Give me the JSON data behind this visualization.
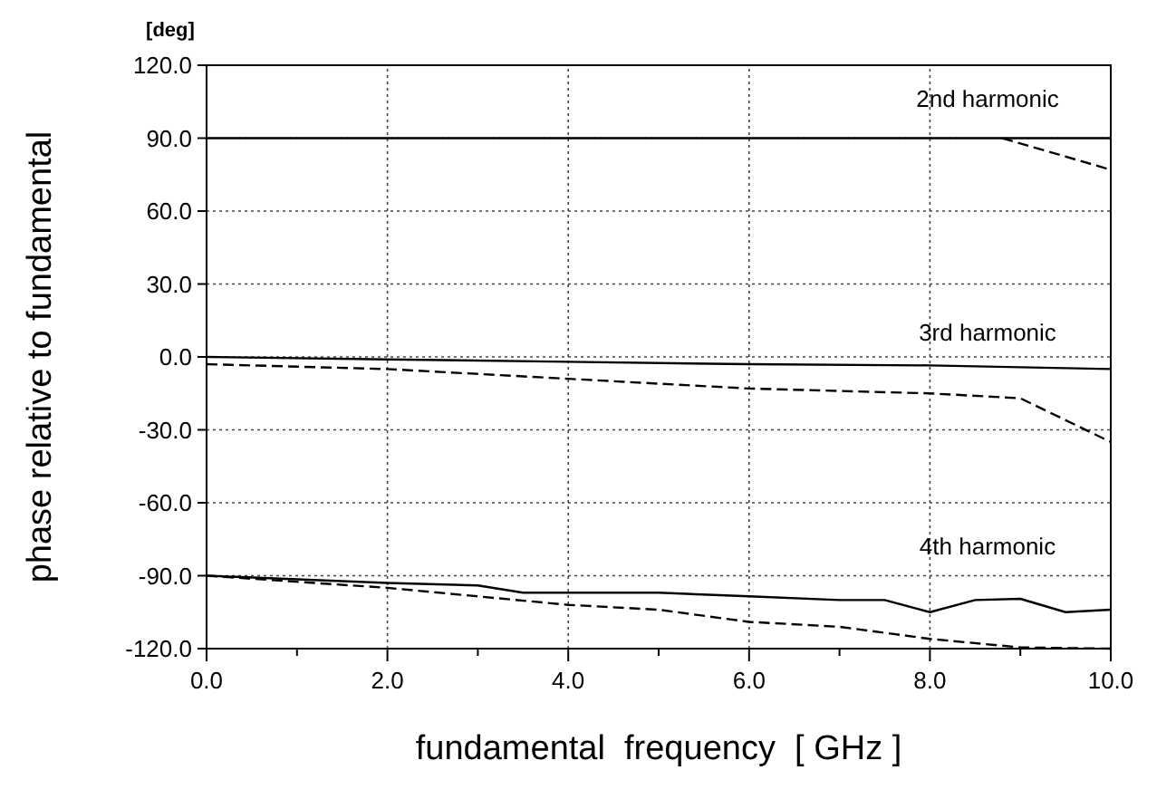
{
  "chart_data": {
    "type": "line",
    "xlabel": "fundamental  frequency  [ GHz ]",
    "ylabel": "phase relative to fundamental",
    "xlim": [
      0,
      10
    ],
    "ylim": [
      -120,
      120
    ],
    "xticks": [
      {
        "value": 0,
        "label": "0.0"
      },
      {
        "value": 1,
        "label": null
      },
      {
        "value": 2,
        "label": "2.0"
      },
      {
        "value": 3,
        "label": null
      },
      {
        "value": 4,
        "label": "4.0"
      },
      {
        "value": 5,
        "label": null
      },
      {
        "value": 6,
        "label": "6.0"
      },
      {
        "value": 7,
        "label": null
      },
      {
        "value": 8,
        "label": "8.0"
      },
      {
        "value": 9,
        "label": null
      },
      {
        "value": 10,
        "label": "10.0"
      }
    ],
    "yticks": [
      {
        "value": -120,
        "label": "-120.0"
      },
      {
        "value": -90,
        "label": "-90.0"
      },
      {
        "value": -60,
        "label": "-60.0"
      },
      {
        "value": -30,
        "label": "-30.0"
      },
      {
        "value": 0,
        "label": "0.0"
      },
      {
        "value": 30,
        "label": "30.0"
      },
      {
        "value": 60,
        "label": "60.0"
      },
      {
        "value": 90,
        "label": "90.0"
      },
      {
        "value": 120,
        "label": "120.0"
      }
    ],
    "grid": true,
    "marker": "none",
    "series": [
      {
        "color": "#000000",
        "line_style": "solid",
        "x": [
          0,
          10
        ],
        "values": [
          90,
          90
        ]
      },
      {
        "color": "#000000",
        "line_style": "dashed",
        "x": [
          8.8,
          10
        ],
        "values": [
          90,
          77
        ]
      },
      {
        "color": "#000000",
        "line_style": "solid",
        "x": [
          0,
          2,
          4,
          6,
          8,
          10
        ],
        "values": [
          0,
          -1,
          -2,
          -3,
          -3.5,
          -5
        ]
      },
      {
        "color": "#000000",
        "line_style": "dashed",
        "x": [
          0,
          2,
          4,
          6,
          8,
          9,
          10
        ],
        "values": [
          -3,
          -5,
          -9,
          -13,
          -15,
          -17,
          -35
        ]
      },
      {
        "color": "#000000",
        "line_style": "solid",
        "x": [
          0,
          1,
          2,
          3,
          3.5,
          4,
          5,
          6,
          7,
          7.5,
          8,
          8.5,
          9,
          9.5,
          10
        ],
        "values": [
          -90,
          -91.5,
          -93,
          -94,
          -97,
          -97,
          -97,
          -98.5,
          -100,
          -100,
          -105,
          -100,
          -99.5,
          -105,
          -104
        ]
      },
      {
        "color": "#000000",
        "line_style": "dashed",
        "x": [
          0,
          2,
          4,
          5,
          6,
          7,
          8,
          9,
          10
        ],
        "values": [
          -90,
          -95,
          -102,
          -104,
          -109,
          -111,
          -116,
          -119.5,
          -120
        ]
      }
    ],
    "annotations": [
      "[deg]",
      "2nd harmonic",
      "3rd harmonic",
      "4th harmonic"
    ]
  }
}
